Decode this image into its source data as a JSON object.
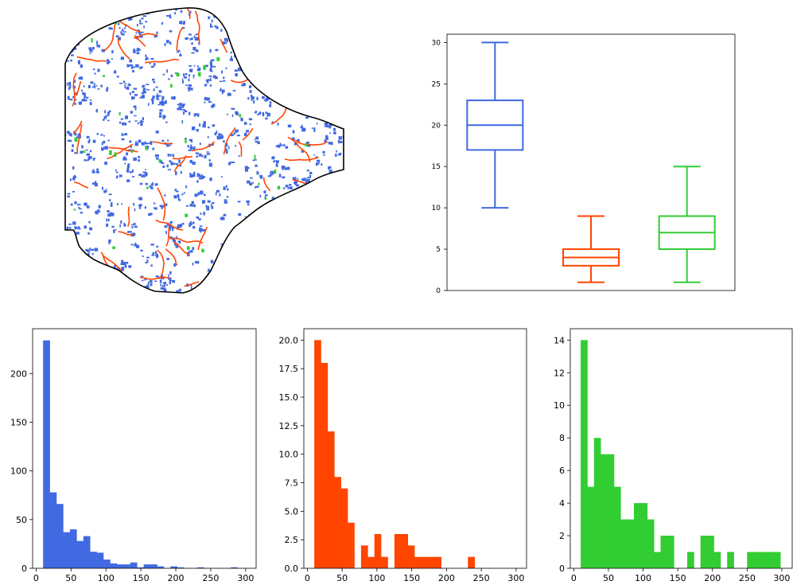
{
  "colors": {
    "blue": "#4169e1",
    "orange": "#ff4500",
    "green": "#32cd32",
    "outline": "#000000"
  },
  "map": {
    "type": "map",
    "description_classes": [
      "blue-patches",
      "orange-streaks",
      "green-patches"
    ]
  },
  "chart_data": [
    {
      "type": "box",
      "ylim": [
        0,
        31
      ],
      "yticks": [
        0,
        5,
        10,
        15,
        20,
        25,
        30
      ],
      "boxes": [
        {
          "color": "#4169e1",
          "whisker_low": 10,
          "q1": 17,
          "median": 20,
          "q3": 23,
          "whisker_high": 30
        },
        {
          "color": "#ff4500",
          "whisker_low": 1,
          "q1": 3,
          "median": 4,
          "q3": 5,
          "whisker_high": 9
        },
        {
          "color": "#32cd32",
          "whisker_low": 1,
          "q1": 5,
          "median": 7,
          "q3": 9,
          "whisker_high": 15
        }
      ]
    },
    {
      "type": "histogram",
      "color": "#4169e1",
      "xlim": [
        -5,
        315
      ],
      "ylim": [
        0,
        246
      ],
      "xticks": [
        0,
        50,
        100,
        150,
        200,
        250,
        300
      ],
      "yticks": [
        0,
        50,
        100,
        150,
        200
      ],
      "bin_width": 9.6,
      "bin_start": 10,
      "counts": [
        234,
        78,
        66,
        37,
        40,
        28,
        33,
        17,
        16,
        9,
        5,
        4,
        4,
        6,
        1,
        4,
        4,
        2,
        0,
        2,
        1,
        0,
        0,
        1,
        0,
        0,
        0,
        0,
        1,
        0
      ]
    },
    {
      "type": "histogram",
      "color": "#ff4500",
      "xlim": [
        -5,
        315
      ],
      "ylim": [
        0,
        21
      ],
      "xticks": [
        0,
        50,
        100,
        150,
        200,
        250,
        300
      ],
      "yticks": [
        "0.0",
        "2.5",
        "5.0",
        "7.5",
        "10.0",
        "12.5",
        "15.0",
        "17.5",
        "20.0"
      ],
      "ytick_values": [
        0,
        2.5,
        5,
        7.5,
        10,
        12.5,
        15,
        17.5,
        20
      ],
      "bin_width": 9.6,
      "bin_start": 10,
      "counts": [
        20,
        18,
        12,
        8,
        7,
        4,
        0,
        2,
        1,
        3,
        1,
        0,
        3,
        3,
        2,
        1,
        1,
        1,
        1,
        0,
        0,
        0,
        0,
        1
      ]
    },
    {
      "type": "histogram",
      "color": "#32cd32",
      "xlim": [
        -5,
        315
      ],
      "ylim": [
        0,
        14.7
      ],
      "xticks": [
        0,
        50,
        100,
        150,
        200,
        250,
        300
      ],
      "yticks": [
        0,
        2,
        4,
        6,
        8,
        10,
        12,
        14
      ],
      "bin_width": 9.6,
      "bin_start": 10,
      "counts": [
        14,
        5,
        8,
        7,
        7,
        5,
        3,
        3,
        4,
        4,
        3,
        1,
        2,
        2,
        0,
        0,
        1,
        0,
        2,
        2,
        1,
        0,
        1,
        0,
        0,
        1,
        1,
        1,
        1,
        1
      ]
    }
  ]
}
